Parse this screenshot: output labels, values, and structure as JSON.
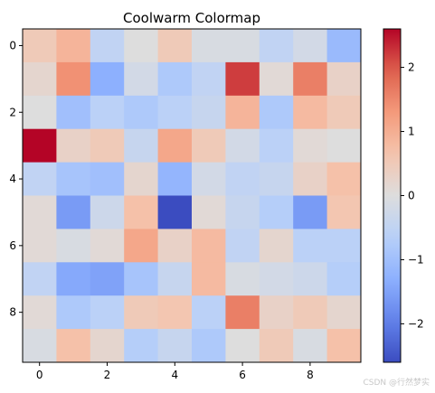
{
  "chart_data": {
    "type": "heatmap",
    "title": "Coolwarm Colormap",
    "colormap": "coolwarm",
    "vmin": -2.6,
    "vmax": 2.6,
    "x_ticks": [
      0,
      2,
      4,
      6,
      8
    ],
    "y_ticks": [
      0,
      2,
      4,
      6,
      8
    ],
    "colorbar_ticks": [
      -2,
      -1,
      0,
      1,
      2
    ],
    "colorbar_tick_labels": [
      "−2",
      "−1",
      "0",
      "1",
      "2"
    ],
    "values": [
      [
        0.5,
        0.9,
        -0.5,
        0.0,
        0.5,
        -0.1,
        -0.1,
        -0.5,
        -0.2,
        -1.1
      ],
      [
        0.2,
        1.4,
        -1.3,
        -0.2,
        -0.8,
        -0.5,
        2.2,
        0.1,
        1.6,
        0.3
      ],
      [
        0.0,
        -1.0,
        -0.6,
        -0.8,
        -0.6,
        -0.4,
        0.9,
        -0.8,
        0.8,
        0.5
      ],
      [
        2.6,
        0.3,
        0.5,
        -0.4,
        1.1,
        0.5,
        -0.2,
        -0.6,
        0.1,
        0.0
      ],
      [
        -0.5,
        -0.9,
        -1.0,
        0.2,
        -1.2,
        -0.2,
        -0.5,
        -0.4,
        0.3,
        0.7
      ],
      [
        0.1,
        -1.6,
        -0.3,
        0.7,
        -2.6,
        0.1,
        -0.4,
        -0.7,
        -1.6,
        0.6
      ],
      [
        0.1,
        -0.1,
        0.1,
        1.1,
        0.3,
        0.8,
        -0.5,
        0.2,
        -0.6,
        -0.6
      ],
      [
        -0.5,
        -1.4,
        -1.5,
        -0.9,
        -0.4,
        0.8,
        -0.1,
        -0.2,
        -0.3,
        -0.7
      ],
      [
        0.1,
        -0.8,
        -0.6,
        0.5,
        0.6,
        -0.6,
        1.6,
        0.3,
        0.5,
        0.2
      ],
      [
        -0.1,
        0.7,
        0.2,
        -0.7,
        -0.4,
        -0.8,
        0.0,
        0.5,
        -0.1,
        0.7
      ]
    ]
  },
  "watermark": "CSDN @行然梦实"
}
